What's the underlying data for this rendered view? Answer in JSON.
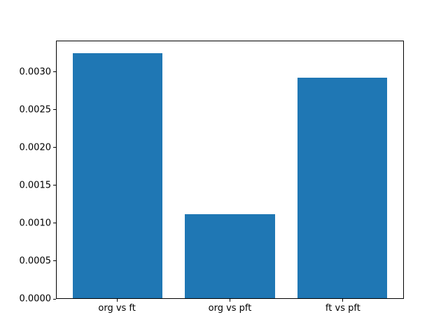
{
  "chart_data": {
    "type": "bar",
    "title": "",
    "xlabel": "",
    "ylabel": "",
    "categories": [
      "org vs ft",
      "org vs pft",
      "ft vs pft"
    ],
    "values": [
      0.00325,
      0.00112,
      0.00293
    ],
    "ylim": [
      0,
      0.0034125
    ],
    "xlim": [
      -0.54,
      2.54
    ],
    "yticks": [
      0.0,
      0.0005,
      0.001,
      0.0015,
      0.002,
      0.0025,
      0.003
    ],
    "ytick_labels": [
      "0.0000",
      "0.0005",
      "0.0010",
      "0.0015",
      "0.0020",
      "0.0025",
      "0.0030"
    ],
    "bar_width_fraction": 0.8,
    "bar_color": "#1f77b4",
    "axis_color": "#000000",
    "background_color": "#ffffff",
    "grid": false,
    "legend": null
  }
}
